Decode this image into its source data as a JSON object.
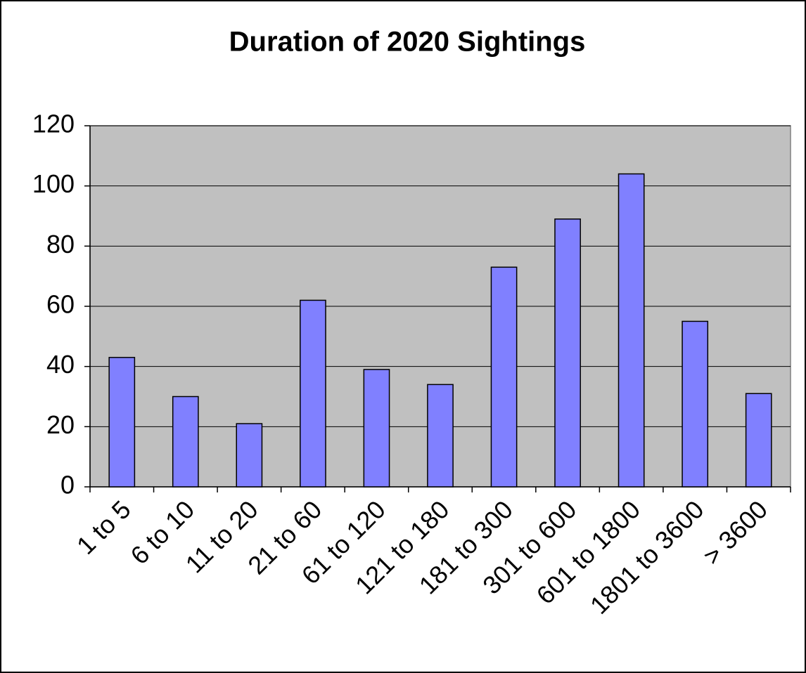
{
  "chart_data": {
    "type": "bar",
    "title": "Duration of 2020 Sightings",
    "categories": [
      "1 to 5",
      "6 to 10",
      "11 to 20",
      "21 to 60",
      "61 to 120",
      "121 to 180",
      "181 to 300",
      "301 to 600",
      "601 to 1800",
      "1801 to 3600",
      "> 3600"
    ],
    "values": [
      43,
      30,
      21,
      62,
      39,
      34,
      73,
      89,
      104,
      55,
      31
    ],
    "color": "#8080ff",
    "ylim": [
      0,
      120
    ],
    "yticks": [
      0,
      20,
      40,
      60,
      80,
      100,
      120
    ],
    "grid": true
  }
}
